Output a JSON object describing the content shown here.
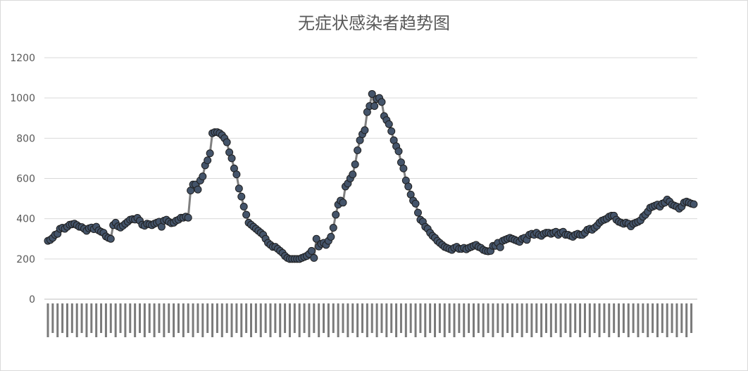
{
  "chart_data": {
    "type": "line",
    "title": "无症状感染者趋势图",
    "xlabel": "",
    "ylabel": "",
    "ylim": [
      0,
      1200
    ],
    "yticks": [
      0,
      200,
      400,
      600,
      800,
      1000,
      1200
    ],
    "grid": true,
    "legend": "none",
    "x_tick_labels_note": "x-axis shows dense date labels (2020-2021), rotated and illegible in the screenshot",
    "series": [
      {
        "values": [
          290,
          295,
          305,
          320,
          325,
          350,
          355,
          350,
          360,
          370,
          372,
          375,
          368,
          360,
          358,
          350,
          340,
          352,
          356,
          348,
          360,
          342,
          335,
          330,
          312,
          305,
          300,
          368,
          380,
          362,
          356,
          365,
          375,
          385,
          395,
          398,
          396,
          404,
          390,
          370,
          365,
          375,
          372,
          368,
          375,
          380,
          385,
          360,
          390,
          395,
          385,
          378,
          380,
          390,
          395,
          405,
          405,
          410,
          405,
          540,
          570,
          570,
          545,
          590,
          610,
          665,
          690,
          725,
          825,
          830,
          830,
          825,
          815,
          800,
          780,
          730,
          700,
          650,
          620,
          550,
          510,
          460,
          420,
          380,
          370,
          360,
          350,
          340,
          330,
          320,
          300,
          280,
          270,
          260,
          260,
          250,
          240,
          230,
          215,
          205,
          200,
          200,
          200,
          200,
          200,
          205,
          210,
          215,
          225,
          240,
          205,
          300,
          262,
          275,
          280,
          270,
          290,
          310,
          355,
          420,
          470,
          490,
          480,
          560,
          575,
          600,
          620,
          670,
          740,
          790,
          820,
          840,
          930,
          960,
          1020,
          960,
          995,
          1000,
          980,
          910,
          890,
          870,
          835,
          790,
          760,
          735,
          680,
          650,
          590,
          560,
          520,
          490,
          475,
          430,
          395,
          385,
          360,
          350,
          330,
          315,
          305,
          290,
          280,
          270,
          260,
          255,
          250,
          245,
          255,
          260,
          250,
          250,
          255,
          248,
          255,
          260,
          265,
          270,
          260,
          255,
          245,
          240,
          238,
          240,
          265,
          265,
          280,
          258,
          290,
          295,
          300,
          305,
          300,
          295,
          290,
          285,
          300,
          305,
          295,
          320,
          325,
          320,
          330,
          320,
          315,
          325,
          330,
          330,
          325,
          330,
          335,
          320,
          330,
          335,
          320,
          320,
          315,
          310,
          320,
          325,
          320,
          320,
          330,
          345,
          350,
          345,
          355,
          365,
          380,
          390,
          395,
          400,
          410,
          415,
          415,
          395,
          385,
          380,
          375,
          380,
          375,
          362,
          375,
          380,
          385,
          392,
          410,
          420,
          435,
          455,
          460,
          465,
          470,
          460,
          475,
          480,
          495,
          485,
          470,
          465,
          460,
          450,
          460,
          480,
          485,
          480,
          475,
          472
        ]
      }
    ]
  }
}
